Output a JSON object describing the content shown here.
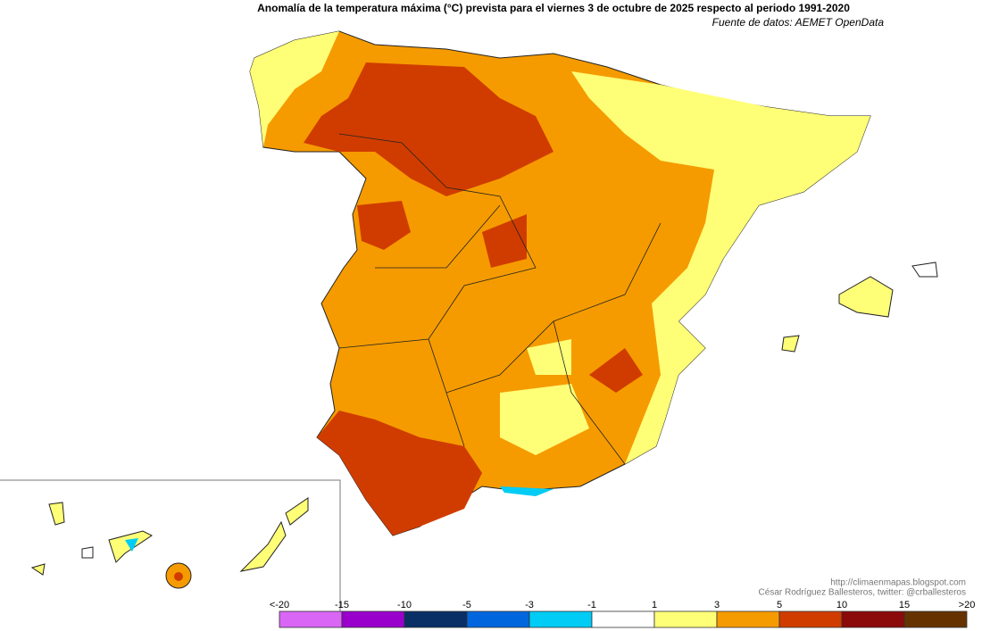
{
  "title": "Anomalía de la temperatura máxima (°C) prevista para el viernes 3 de octubre de 2025 respecto al periodo 1991-2020",
  "source": "Fuente de datos: AEMET OpenData",
  "credits": [
    "http://climaenmapas.blogspot.com",
    "César Rodríguez Ballesteros, twitter: @crballesteros"
  ],
  "legend": {
    "labels": [
      "<-20",
      "-15",
      "-10",
      "-5",
      "-3",
      "-1",
      "1",
      "3",
      "5",
      "10",
      "15",
      ">20"
    ],
    "colors": [
      "#d966f5",
      "#9a00cc",
      "#0a2e66",
      "#0066dd",
      "#00ccf5",
      "#ffffff",
      "#ffff77",
      "#f59b00",
      "#d03c00",
      "#8b0a0a",
      "#663300"
    ]
  }
}
